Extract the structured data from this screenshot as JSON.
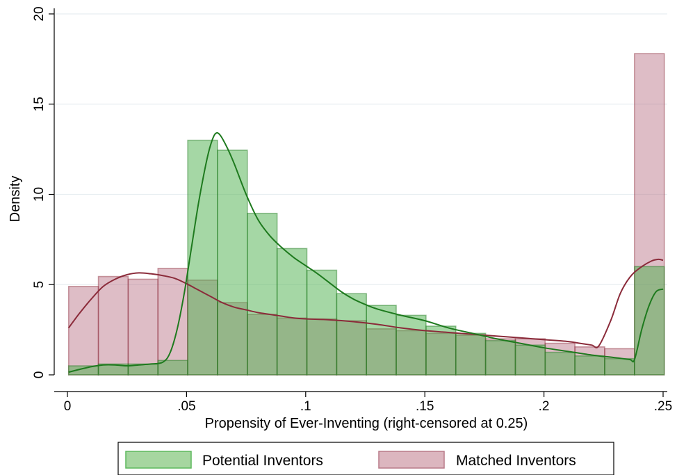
{
  "chart_data": {
    "type": "bar",
    "xlabel": "Propensity of Ever-Inventing (right-censored at 0.25)",
    "ylabel": "Density",
    "xlim": [
      0,
      0.25
    ],
    "ylim": [
      0,
      20
    ],
    "x_ticks": [
      {
        "value": 0,
        "label": "0"
      },
      {
        "value": 0.05,
        "label": ".05"
      },
      {
        "value": 0.1,
        "label": ".1"
      },
      {
        "value": 0.15,
        "label": ".15"
      },
      {
        "value": 0.2,
        "label": ".2"
      },
      {
        "value": 0.25,
        "label": ".25"
      }
    ],
    "y_ticks": [
      {
        "value": 0,
        "label": "0"
      },
      {
        "value": 5,
        "label": "5"
      },
      {
        "value": 10,
        "label": "10"
      },
      {
        "value": 15,
        "label": "15"
      },
      {
        "value": 20,
        "label": "20"
      }
    ],
    "grid": true,
    "legend_position": "bottom",
    "bin_edges": [
      0.0005,
      0.013,
      0.0255,
      0.038,
      0.0505,
      0.063,
      0.0755,
      0.088,
      0.1005,
      0.113,
      0.1255,
      0.138,
      0.1505,
      0.163,
      0.1755,
      0.188,
      0.2005,
      0.213,
      0.2255,
      0.238,
      0.2505
    ],
    "series": [
      {
        "name": "Matched Inventors",
        "color": "#8b2b3a",
        "fill": "rgba(176,98,118,0.42)",
        "values": [
          4.9,
          5.45,
          5.3,
          5.9,
          5.25,
          4.0,
          3.35,
          3.15,
          3.1,
          3.0,
          2.55,
          2.45,
          2.3,
          2.2,
          2.0,
          2.0,
          1.75,
          1.55,
          1.45,
          17.8
        ],
        "density_curve": [
          [
            0.0005,
            2.6
          ],
          [
            0.005,
            3.4
          ],
          [
            0.01,
            4.2
          ],
          [
            0.015,
            4.9
          ],
          [
            0.02,
            5.3
          ],
          [
            0.025,
            5.55
          ],
          [
            0.03,
            5.65
          ],
          [
            0.035,
            5.6
          ],
          [
            0.04,
            5.5
          ],
          [
            0.045,
            5.35
          ],
          [
            0.05,
            5.05
          ],
          [
            0.055,
            4.7
          ],
          [
            0.06,
            4.35
          ],
          [
            0.065,
            4.0
          ],
          [
            0.07,
            3.75
          ],
          [
            0.075,
            3.6
          ],
          [
            0.08,
            3.45
          ],
          [
            0.085,
            3.35
          ],
          [
            0.09,
            3.25
          ],
          [
            0.095,
            3.15
          ],
          [
            0.1,
            3.1
          ],
          [
            0.11,
            3.05
          ],
          [
            0.12,
            2.95
          ],
          [
            0.13,
            2.8
          ],
          [
            0.14,
            2.6
          ],
          [
            0.15,
            2.45
          ],
          [
            0.16,
            2.35
          ],
          [
            0.17,
            2.25
          ],
          [
            0.18,
            2.15
          ],
          [
            0.19,
            2.05
          ],
          [
            0.2,
            1.95
          ],
          [
            0.21,
            1.85
          ],
          [
            0.215,
            1.75
          ],
          [
            0.22,
            1.65
          ],
          [
            0.223,
            1.6
          ],
          [
            0.228,
            3.0
          ],
          [
            0.232,
            4.5
          ],
          [
            0.236,
            5.4
          ],
          [
            0.24,
            5.9
          ],
          [
            0.245,
            6.3
          ],
          [
            0.248,
            6.4
          ],
          [
            0.25,
            6.35
          ]
        ]
      },
      {
        "name": "Potential Inventors",
        "color": "#1e7a1e",
        "fill": "rgba(76,175,76,0.50)",
        "values": [
          0.5,
          0.6,
          0.6,
          0.8,
          13.0,
          12.45,
          8.95,
          7.0,
          5.8,
          4.5,
          3.85,
          3.3,
          2.7,
          2.3,
          1.9,
          1.65,
          1.25,
          1.05,
          0.9,
          6.0
        ],
        "density_curve": [
          [
            0.0005,
            0.15
          ],
          [
            0.005,
            0.3
          ],
          [
            0.01,
            0.45
          ],
          [
            0.015,
            0.55
          ],
          [
            0.02,
            0.55
          ],
          [
            0.025,
            0.5
          ],
          [
            0.03,
            0.55
          ],
          [
            0.035,
            0.6
          ],
          [
            0.04,
            0.7
          ],
          [
            0.043,
            1.2
          ],
          [
            0.046,
            2.5
          ],
          [
            0.049,
            4.5
          ],
          [
            0.052,
            7.0
          ],
          [
            0.055,
            9.5
          ],
          [
            0.058,
            11.6
          ],
          [
            0.06,
            12.7
          ],
          [
            0.062,
            13.35
          ],
          [
            0.064,
            13.3
          ],
          [
            0.067,
            12.6
          ],
          [
            0.07,
            11.7
          ],
          [
            0.075,
            10.0
          ],
          [
            0.08,
            8.6
          ],
          [
            0.085,
            7.7
          ],
          [
            0.09,
            7.05
          ],
          [
            0.095,
            6.5
          ],
          [
            0.1,
            6.05
          ],
          [
            0.105,
            5.6
          ],
          [
            0.11,
            5.1
          ],
          [
            0.115,
            4.6
          ],
          [
            0.12,
            4.2
          ],
          [
            0.125,
            3.9
          ],
          [
            0.13,
            3.65
          ],
          [
            0.14,
            3.3
          ],
          [
            0.15,
            3.0
          ],
          [
            0.16,
            2.6
          ],
          [
            0.17,
            2.3
          ],
          [
            0.18,
            2.0
          ],
          [
            0.19,
            1.75
          ],
          [
            0.2,
            1.5
          ],
          [
            0.21,
            1.3
          ],
          [
            0.22,
            1.1
          ],
          [
            0.23,
            0.95
          ],
          [
            0.236,
            0.85
          ],
          [
            0.238,
            0.85
          ],
          [
            0.241,
            2.5
          ],
          [
            0.244,
            3.8
          ],
          [
            0.247,
            4.6
          ],
          [
            0.25,
            4.75
          ]
        ]
      }
    ],
    "legend": [
      {
        "label": "Potential Inventors",
        "fill": "#a6d6a0",
        "stroke": "#5cb85c"
      },
      {
        "label": "Matched Inventors",
        "fill": "#dcb6bf",
        "stroke": "#b87a88"
      }
    ]
  }
}
